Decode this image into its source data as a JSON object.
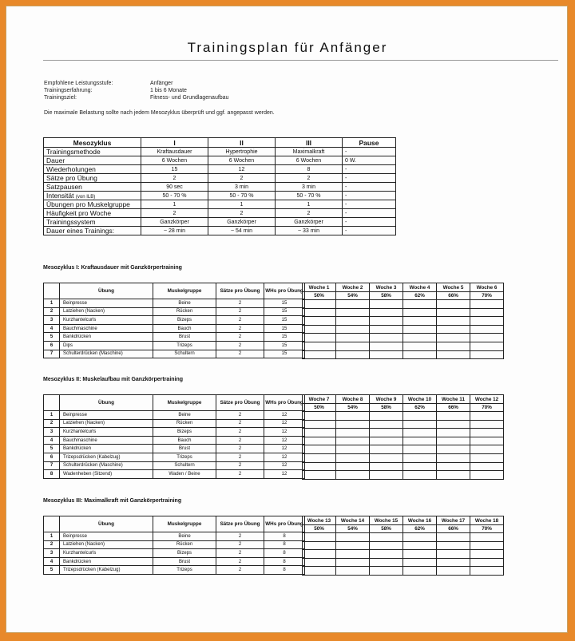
{
  "title": "Trainingsplan für Anfänger",
  "info": [
    {
      "label": "Empfohlene Leistungsstufe:",
      "value": "Anfänger"
    },
    {
      "label": "Trainingserfahrung:",
      "value": "1 bis 6 Monate"
    },
    {
      "label": "Trainingsziel:",
      "value": "Fitness- und Grundlagenaufbau"
    }
  ],
  "note": "Die maximale Belastung sollte nach jedem Mesozyklus überprüft und ggf. angepasst werden.",
  "overview": {
    "headers": [
      "Mesozyklus",
      "I",
      "II",
      "III",
      "Pause"
    ],
    "rows": [
      {
        "label": "Trainingsmethode",
        "sub": "",
        "v": [
          "Kraftausdauer",
          "Hypertrophie",
          "Maximalkraft",
          "-"
        ]
      },
      {
        "label": "Dauer",
        "sub": "",
        "v": [
          "6 Wochen",
          "6 Wochen",
          "6 Wochen",
          "0 W."
        ]
      },
      {
        "label": "Wiederholungen",
        "sub": "",
        "v": [
          "15",
          "12",
          "8",
          "-"
        ]
      },
      {
        "label": "Sätze pro Übung",
        "sub": "",
        "v": [
          "2",
          "2",
          "2",
          "-"
        ]
      },
      {
        "label": "Satzpausen",
        "sub": "",
        "v": [
          "90 sec",
          "3 min",
          "3 min",
          "-"
        ]
      },
      {
        "label": "Intensität",
        "sub": "(von ILB)",
        "v": [
          "50 - 70 %",
          "50 - 70 %",
          "50 - 70 %",
          "-"
        ]
      },
      {
        "label": "Übungen pro Muskelgruppe",
        "sub": "",
        "v": [
          "1",
          "1",
          "1",
          "-"
        ]
      },
      {
        "label": "Häufigkeit pro Woche",
        "sub": "",
        "v": [
          "2",
          "2",
          "2",
          "-"
        ]
      },
      {
        "label": "Trainingssystem",
        "sub": "",
        "v": [
          "Ganzkörper",
          "Ganzkörper",
          "Ganzkörper",
          "-"
        ]
      },
      {
        "label": "Dauer eines Trainings:",
        "sub": "",
        "v": [
          "~ 28 min",
          "~ 54 min",
          "~ 33 min",
          "-"
        ]
      }
    ]
  },
  "ex_headers": {
    "uebung": "Übung",
    "muskel": "Muskelgruppe",
    "saetze": "Sätze pro Übung",
    "whs": "WHs pro Übung"
  },
  "sections": [
    {
      "title": "Mesozyklus I: Kraftausdauer mit Ganzkörpertraining",
      "rows": [
        [
          "1",
          "Beinpresse",
          "Beine",
          "2",
          "15"
        ],
        [
          "2",
          "Latziehen (Nacken)",
          "Rücken",
          "2",
          "15"
        ],
        [
          "3",
          "Kurzhantelcurls",
          "Bizeps",
          "2",
          "15"
        ],
        [
          "4",
          "Bauchmaschine",
          "Bauch",
          "2",
          "15"
        ],
        [
          "5",
          "Bankdrücken",
          "Brust",
          "2",
          "15"
        ],
        [
          "6",
          "Dips",
          "Trizeps",
          "2",
          "15"
        ],
        [
          "7",
          "Schulterdrücken (Maschine)",
          "Schultern",
          "2",
          "15"
        ]
      ],
      "weeks": [
        "Woche 1",
        "Woche 2",
        "Woche 3",
        "Woche 4",
        "Woche 5",
        "Woche 6"
      ],
      "pcts": [
        "50%",
        "54%",
        "58%",
        "62%",
        "66%",
        "70%"
      ]
    },
    {
      "title": "Mesozyklus II: Muskelaufbau mit Ganzkörpertraining",
      "rows": [
        [
          "1",
          "Beinpresse",
          "Beine",
          "2",
          "12"
        ],
        [
          "2",
          "Latziehen (Nacken)",
          "Rücken",
          "2",
          "12"
        ],
        [
          "3",
          "Kurzhantelcurls",
          "Bizeps",
          "2",
          "12"
        ],
        [
          "4",
          "Bauchmaschine",
          "Bauch",
          "2",
          "12"
        ],
        [
          "5",
          "Bankdrücken",
          "Brust",
          "2",
          "12"
        ],
        [
          "6",
          "Trizepsdrücken (Kabelzug)",
          "Trizeps",
          "2",
          "12"
        ],
        [
          "7",
          "Schulterdrücken (Maschine)",
          "Schultern",
          "2",
          "12"
        ],
        [
          "8",
          "Wadenheben (Sitzend)",
          "Waden / Beine",
          "2",
          "12"
        ]
      ],
      "weeks": [
        "Woche 7",
        "Woche 8",
        "Woche 9",
        "Woche 10",
        "Woche 11",
        "Woche 12"
      ],
      "pcts": [
        "50%",
        "54%",
        "58%",
        "62%",
        "66%",
        "70%"
      ]
    },
    {
      "title": "Mesozyklus III: Maximalkraft mit Ganzkörpertraining",
      "rows": [
        [
          "1",
          "Beinpresse",
          "Beine",
          "2",
          "8"
        ],
        [
          "2",
          "Latziehen (Nacken)",
          "Rücken",
          "2",
          "8"
        ],
        [
          "3",
          "Kurzhantelcurls",
          "Bizeps",
          "2",
          "8"
        ],
        [
          "4",
          "Bankdrücken",
          "Brust",
          "2",
          "8"
        ],
        [
          "5",
          "Trizepsdrücken (Kabelzug)",
          "Trizeps",
          "2",
          "8"
        ]
      ],
      "weeks": [
        "Woche 13",
        "Woche 14",
        "Woche 15",
        "Woche 16",
        "Woche 17",
        "Woche 18"
      ],
      "pcts": [
        "50%",
        "54%",
        "58%",
        "62%",
        "66%",
        "70%"
      ]
    }
  ]
}
